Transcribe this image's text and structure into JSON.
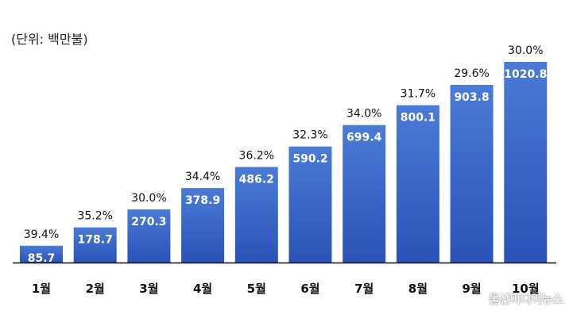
{
  "unit_label": "(단위: 백만불)",
  "watermark": "울산미디어뉴스",
  "colors": {
    "bar_top": "#4a7bd6",
    "bar_bottom": "#2a52b8",
    "value_text": "#ffffff",
    "pct_text": "#111111",
    "axis": "#111111"
  },
  "chart_data": {
    "type": "bar",
    "categories": [
      "1월",
      "2월",
      "3월",
      "4월",
      "5월",
      "6월",
      "7월",
      "8월",
      "9월",
      "10월"
    ],
    "values": [
      85.7,
      178.7,
      270.3,
      378.9,
      486.2,
      590.2,
      699.4,
      800.1,
      903.8,
      1020.8
    ],
    "value_labels": [
      "85.7",
      "178.7",
      "270.3",
      "378.9",
      "486.2",
      "590.2",
      "699.4",
      "800.1",
      "903.8",
      "1020.8"
    ],
    "pct_labels": [
      "39.4%",
      "35.2%",
      "30.0%",
      "34.4%",
      "36.2%",
      "32.3%",
      "34.0%",
      "31.7%",
      "29.6%",
      "30.0%"
    ],
    "title": "",
    "xlabel": "",
    "ylabel": "",
    "ylim": [
      0,
      1020.8
    ],
    "grid": false,
    "legend": "none"
  }
}
